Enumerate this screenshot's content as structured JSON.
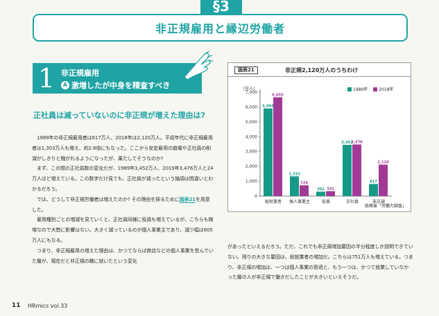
{
  "header": {
    "section": "§3",
    "title": "非正規雇用と縁辺労働者"
  },
  "subsection": {
    "number": "1",
    "line1": "非正規雇用",
    "badge": "A",
    "line2": "激増したが中身を精査すべき"
  },
  "lead": "正社員は減っていないのに非正規が増えた理由は?",
  "body": {
    "p1": "1989年の非正規雇用者は817万人、2018年は2,120万人。平成年代に非正規雇用者は1,303万人も増え、約2.6倍にもなった。ここから安定雇用の崩壊や正社員の削減がしきりと騒がれるようになったが、果たしてそうなのか?",
    "p2": "まず、この間の正社員数の変化だが、1989年3,452万人、2019年3,476万人と24万人ほど増えている。この数字だけ見ても、正社員が減ったという論調は間違いとわかるだろう。",
    "p3a": "では、どうして非正規労働者は増えたのか? その理由を探るために",
    "p3ref": "図表21",
    "p3b": "を用意した。",
    "p4": "雇用種別ごとの増減を見ていくと、正社員同様に役員も増えているが、こちらも微増なので大勢に影響はない。大きく減っているのが個人事業主であり、減少幅は605万人にもなる。",
    "p5": "つまり、非正規雇用の増えた理由は、かつてならば商店などの個人事業を営んでいた層が、現在だと非正規の職に就いたという変化"
  },
  "right_body": "があったといえるだろう。ただ、これでも非正規増加要因の半分程度しか説明できていない。残りの大きな要因は、総就業者の増加だ。こちらは751万人も増えている。つまり、非正規の増加は、一つは個人事業の衰退と、もう一つは、かつて就業していなかった層の人が非正規で働きだしたことが大きいといえそうだ。",
  "figure": {
    "label": "図表21",
    "title": "非正規2,120万人のうちわけ",
    "source": "総務省「労働力調査」"
  },
  "chart_data": {
    "type": "bar",
    "categories": [
      "総就業者",
      "個人事業主",
      "役員",
      "正社員",
      "非正規"
    ],
    "series": [
      {
        "name": "1989年",
        "values": [
          5904,
          1333,
          302,
          3452,
          817
        ],
        "labels": [
          "5,904",
          "1,333",
          "302",
          "3,452",
          "817"
        ],
        "color": "#169a87"
      },
      {
        "name": "2018年",
        "values": [
          6655,
          728,
          331,
          3476,
          2120
        ],
        "labels": [
          "6,655",
          "728",
          "331",
          "3,476",
          "2,120"
        ],
        "color": "#a13a96"
      }
    ],
    "ylim": [
      0,
      7000
    ],
    "yticks": [
      0,
      1000,
      2000,
      3000,
      4000,
      5000,
      6000,
      7000
    ],
    "ytick_labels": [
      "0",
      "1,000",
      "2,000",
      "3,000",
      "4,000",
      "5,000",
      "6,000",
      "7,000"
    ],
    "ylabel": "(万人)",
    "legend_position": "top-right"
  },
  "footer": {
    "page": "11",
    "magazine": "HRmics vol.33"
  }
}
